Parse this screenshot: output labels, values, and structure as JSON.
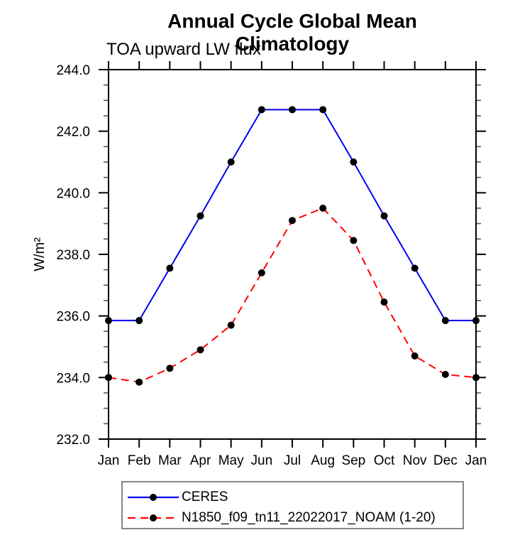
{
  "chart_data": {
    "type": "line",
    "title": "Annual Cycle Global Mean Climatology",
    "subtitle": "TOA upward LW flux",
    "ylabel": "W/m²",
    "xlabel": "",
    "categories": [
      "Jan",
      "Feb",
      "Mar",
      "Apr",
      "May",
      "Jun",
      "Jul",
      "Aug",
      "Sep",
      "Oct",
      "Nov",
      "Dec",
      "Jan"
    ],
    "ylim": [
      232.0,
      244.0
    ],
    "y_major_ticks": [
      232.0,
      234.0,
      236.0,
      238.0,
      240.0,
      242.0,
      244.0
    ],
    "y_minor_step": 0.5,
    "grid": false,
    "legend_position": "bottom-left-box",
    "marker": {
      "shape": "circle",
      "color": "#000000",
      "radius": 5
    },
    "frame_color": "#000000",
    "series": [
      {
        "name": "CERES",
        "color": "#0000ee",
        "style": "solid",
        "values": [
          235.85,
          235.85,
          237.55,
          239.25,
          241.0,
          242.7,
          242.7,
          242.7,
          241.0,
          239.25,
          237.55,
          235.85,
          235.85
        ]
      },
      {
        "name": "N1850_f09_tn11_22022017_NOAM (1-20)",
        "color": "#ff0000",
        "style": "dashed",
        "values": [
          234.0,
          233.85,
          234.3,
          234.9,
          235.7,
          237.4,
          239.1,
          239.5,
          238.45,
          236.45,
          234.7,
          234.1,
          234.0
        ]
      }
    ]
  }
}
